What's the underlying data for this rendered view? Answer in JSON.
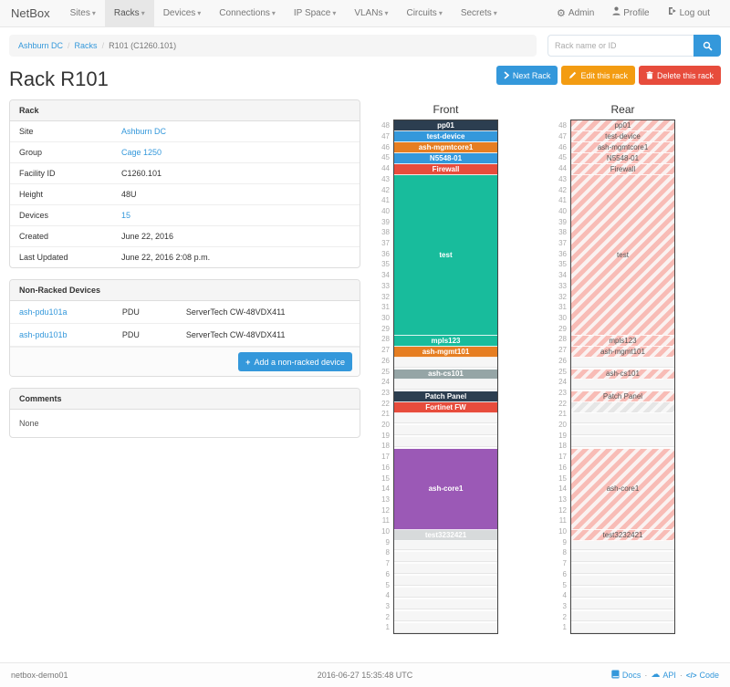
{
  "navbar": {
    "brand": "NetBox",
    "items": [
      {
        "label": "Sites",
        "active": false
      },
      {
        "label": "Racks",
        "active": true
      },
      {
        "label": "Devices",
        "active": false
      },
      {
        "label": "Connections",
        "active": false
      },
      {
        "label": "IP Space",
        "active": false
      },
      {
        "label": "VLANs",
        "active": false
      },
      {
        "label": "Circuits",
        "active": false
      },
      {
        "label": "Secrets",
        "active": false
      }
    ],
    "right": [
      {
        "label": "Admin",
        "icon": "gear-icon"
      },
      {
        "label": "Profile",
        "icon": "user-icon"
      },
      {
        "label": "Log out",
        "icon": "logout-icon"
      }
    ]
  },
  "breadcrumb": {
    "items": [
      {
        "label": "Ashburn DC",
        "link": true
      },
      {
        "label": "Racks",
        "link": true
      },
      {
        "label": "R101 (C1260.101)",
        "link": false
      }
    ]
  },
  "search": {
    "placeholder": "Rack name or ID"
  },
  "page": {
    "title": "Rack R101"
  },
  "actions": {
    "next_label": "Next Rack",
    "edit_label": "Edit this rack",
    "delete_label": "Delete this rack"
  },
  "rack_panel": {
    "title": "Rack",
    "rows": [
      {
        "label": "Site",
        "value": "Ashburn DC",
        "link": true
      },
      {
        "label": "Group",
        "value": "Cage 1250",
        "link": true
      },
      {
        "label": "Facility ID",
        "value": "C1260.101",
        "link": false
      },
      {
        "label": "Height",
        "value": "48U",
        "link": false
      },
      {
        "label": "Devices",
        "value": "15",
        "link": true
      },
      {
        "label": "Created",
        "value": "June 22, 2016",
        "link": false
      },
      {
        "label": "Last Updated",
        "value": "June 22, 2016 2:08 p.m.",
        "link": false
      }
    ]
  },
  "non_racked": {
    "title": "Non-Racked Devices",
    "rows": [
      {
        "name": "ash-pdu101a",
        "role": "PDU",
        "model": "ServerTech CW-48VDX411"
      },
      {
        "name": "ash-pdu101b",
        "role": "PDU",
        "model": "ServerTech CW-48VDX411"
      }
    ],
    "add_button": "Add a non-racked device"
  },
  "comments": {
    "title": "Comments",
    "body": "None"
  },
  "elevations": {
    "units_total": 48,
    "front": {
      "title": "Front",
      "slots": [
        {
          "label": "pp01",
          "units": 1,
          "color": "#2c3e50"
        },
        {
          "label": "test-device",
          "units": 1,
          "color": "#3498db"
        },
        {
          "label": "ash-mgmtcore1",
          "units": 1,
          "color": "#e67e22"
        },
        {
          "label": "N5548-01",
          "units": 1,
          "color": "#3498db"
        },
        {
          "label": "Firewall",
          "units": 1,
          "color": "#e74c3c"
        },
        {
          "label": "test",
          "units": 16,
          "color": "#18bc9c"
        },
        {
          "label": "mpls123",
          "units": 1,
          "color": "#18bc9c"
        },
        {
          "label": "ash-mgmt101",
          "units": 1,
          "color": "#e67e22"
        },
        {
          "empty": true,
          "units": 1
        },
        {
          "label": "ash-cs101",
          "units": 1,
          "color": "#95a5a6"
        },
        {
          "empty": true,
          "units": 1
        },
        {
          "label": "Patch Panel",
          "units": 1,
          "color": "#2c3e50"
        },
        {
          "label": "Fortinet FW",
          "units": 1,
          "color": "#e74c3c"
        },
        {
          "empty": true,
          "units": 3
        },
        {
          "label": "ash-core1",
          "units": 8,
          "color": "#9b59b6"
        },
        {
          "label": "test3232421",
          "units": 1,
          "color": "#d7dadb"
        },
        {
          "empty": true,
          "units": 8
        }
      ]
    },
    "rear": {
      "title": "Rear",
      "slots": [
        {
          "label": "pp01",
          "units": 1,
          "hatch": "pink"
        },
        {
          "label": "test-device",
          "units": 1,
          "hatch": "pink"
        },
        {
          "label": "ash-mgmtcore1",
          "units": 1,
          "hatch": "pink"
        },
        {
          "label": "N5548-01",
          "units": 1,
          "hatch": "pink"
        },
        {
          "label": "Firewall",
          "units": 1,
          "hatch": "pink"
        },
        {
          "label": "test",
          "units": 16,
          "hatch": "pink"
        },
        {
          "label": "mpls123",
          "units": 1,
          "hatch": "pink"
        },
        {
          "label": "ash-mgmt101",
          "units": 1,
          "hatch": "pink"
        },
        {
          "empty": true,
          "units": 1
        },
        {
          "label": "ash-cs101",
          "units": 1,
          "hatch": "pink"
        },
        {
          "empty": true,
          "units": 1
        },
        {
          "label": "Patch Panel",
          "units": 1,
          "hatch": "pink"
        },
        {
          "label": "",
          "units": 1,
          "hatch": "gray"
        },
        {
          "empty": true,
          "units": 3
        },
        {
          "label": "ash-core1",
          "units": 8,
          "hatch": "pink"
        },
        {
          "label": "test3232421",
          "units": 1,
          "hatch": "pink"
        },
        {
          "empty": true,
          "units": 8
        }
      ]
    }
  },
  "footer": {
    "hostname": "netbox-demo01",
    "timestamp": "2016-06-27 15:35:48 UTC",
    "links": [
      {
        "label": "Docs",
        "icon": "book-icon"
      },
      {
        "label": "API",
        "icon": "cloud-icon"
      },
      {
        "label": "Code",
        "icon": "code-icon"
      }
    ]
  },
  "colors": {
    "accent_blue": "#3498db",
    "warning_orange": "#f39c12",
    "danger_red": "#e74c3c",
    "success_green": "#18bc9c",
    "navy": "#2c3e50",
    "purple": "#9b59b6",
    "gray_role": "#95a5a6",
    "hatch_pink": "#f8bcb6"
  }
}
